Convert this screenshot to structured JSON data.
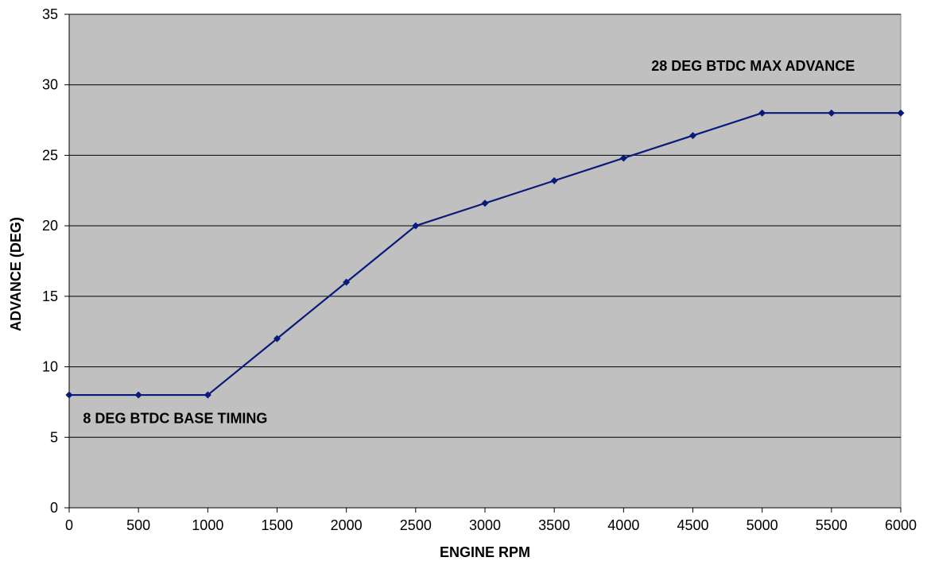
{
  "chart_data": {
    "type": "line",
    "title": "",
    "xlabel": "ENGINE RPM",
    "ylabel": "ADVANCE (DEG)",
    "xlim": [
      0,
      6000
    ],
    "ylim": [
      0,
      35
    ],
    "x_ticks": [
      0,
      500,
      1000,
      1500,
      2000,
      2500,
      3000,
      3500,
      4000,
      4500,
      5000,
      5500,
      6000
    ],
    "y_ticks": [
      0,
      5,
      10,
      15,
      20,
      25,
      30,
      35
    ],
    "grid": "horizontal",
    "legend": "none",
    "series": [
      {
        "x": [
          0,
          500,
          1000,
          1500,
          2000,
          2500,
          3000,
          3500,
          4000,
          4500,
          5000,
          5500,
          6000
        ],
        "values": [
          8,
          8,
          8,
          12,
          16,
          20,
          21.6,
          23.2,
          24.8,
          26.4,
          28,
          28,
          28
        ],
        "color": "#0a1a7a"
      }
    ],
    "annotations": [
      {
        "text": "28 DEG BTDC MAX ADVANCE",
        "x": 4200,
        "y": 31
      },
      {
        "text": "8 DEG BTDC BASE TIMING",
        "x": 100,
        "y": 6
      }
    ],
    "colors": {
      "plot_background": "#c0c0c0",
      "gridline": "#000000",
      "line": "#0a1a7a"
    }
  }
}
